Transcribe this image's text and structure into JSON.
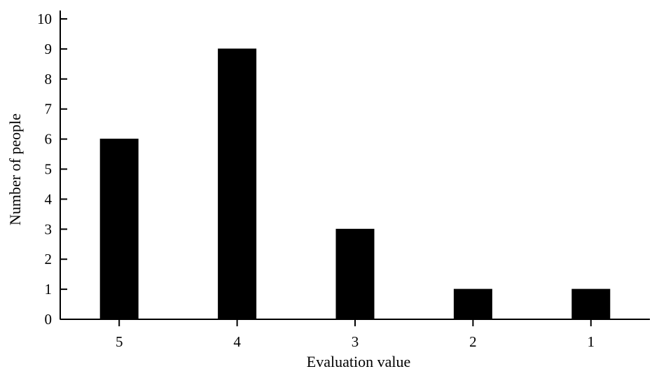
{
  "chart_data": {
    "type": "bar",
    "categories": [
      "5",
      "4",
      "3",
      "2",
      "1"
    ],
    "values": [
      6,
      9,
      3,
      1,
      1
    ],
    "xlabel": "Evaluation value",
    "ylabel": "Number of people",
    "ylim": [
      0,
      10
    ],
    "yticks": [
      0,
      1,
      2,
      3,
      4,
      5,
      6,
      7,
      8,
      9,
      10
    ],
    "grid": false,
    "bar_color": "#000000"
  }
}
